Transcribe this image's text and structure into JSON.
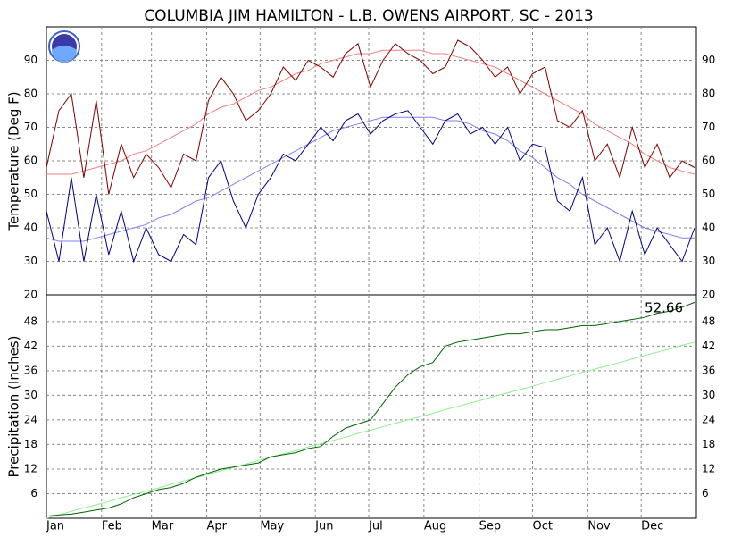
{
  "chart_data": [
    {
      "type": "line",
      "title": "COLUMBIA JIM HAMILTON - L.B. OWENS AIRPORT, SC - 2013",
      "y_label": "Temperature (Deg F)",
      "x": [
        1,
        8,
        15,
        22,
        29,
        36,
        43,
        50,
        57,
        64,
        71,
        78,
        85,
        92,
        99,
        106,
        113,
        120,
        127,
        134,
        141,
        148,
        155,
        162,
        169,
        176,
        183,
        190,
        197,
        204,
        211,
        218,
        225,
        232,
        239,
        246,
        253,
        260,
        267,
        274,
        281,
        288,
        295,
        302,
        309,
        316,
        323,
        330,
        337,
        344,
        351,
        358,
        365
      ],
      "xlim": [
        1,
        366
      ],
      "ylim": [
        20,
        100
      ],
      "yticks": [
        20,
        30,
        40,
        50,
        60,
        70,
        80,
        90
      ],
      "grid": true,
      "series": [
        {
          "color": "#f08080",
          "values": [
            56,
            56,
            56,
            57,
            58,
            59,
            60,
            62,
            63,
            65,
            67,
            69,
            71,
            74,
            76,
            77,
            79,
            81,
            82,
            84,
            86,
            87,
            89,
            90,
            91,
            92,
            92,
            93,
            93,
            93,
            93,
            92,
            92,
            91,
            90,
            89,
            88,
            86,
            84,
            82,
            80,
            78,
            76,
            74,
            71,
            69,
            67,
            65,
            62,
            60,
            58,
            57,
            56
          ]
        },
        {
          "color": "#8080f0",
          "values": [
            37,
            36,
            36,
            36,
            37,
            38,
            39,
            40,
            41,
            43,
            44,
            46,
            48,
            49,
            51,
            53,
            55,
            57,
            59,
            61,
            63,
            65,
            67,
            69,
            70,
            71,
            72,
            73,
            73,
            73,
            73,
            73,
            72,
            72,
            71,
            69,
            68,
            66,
            63,
            61,
            58,
            55,
            53,
            50,
            48,
            46,
            44,
            42,
            40,
            39,
            38,
            37,
            37
          ]
        },
        {
          "color": "#800000",
          "values": [
            58,
            75,
            80,
            55,
            78,
            50,
            65,
            55,
            62,
            58,
            52,
            62,
            60,
            78,
            85,
            80,
            72,
            75,
            80,
            88,
            84,
            90,
            88,
            85,
            92,
            95,
            82,
            90,
            95,
            92,
            90,
            86,
            88,
            96,
            94,
            90,
            85,
            88,
            80,
            86,
            88,
            72,
            70,
            75,
            60,
            65,
            55,
            70,
            58,
            65,
            55,
            60,
            58
          ]
        },
        {
          "color": "#000080",
          "values": [
            45,
            30,
            55,
            30,
            50,
            32,
            45,
            30,
            40,
            32,
            30,
            38,
            35,
            55,
            60,
            48,
            40,
            50,
            55,
            62,
            60,
            65,
            70,
            66,
            72,
            74,
            68,
            72,
            74,
            75,
            70,
            65,
            72,
            74,
            68,
            70,
            65,
            70,
            60,
            65,
            64,
            48,
            45,
            55,
            35,
            40,
            30,
            45,
            32,
            40,
            35,
            30,
            40
          ]
        }
      ]
    },
    {
      "type": "line",
      "y_label": "Precipitation (Inches)",
      "annotation": "52.66",
      "x": [
        1,
        8,
        15,
        22,
        29,
        36,
        43,
        50,
        57,
        64,
        71,
        78,
        85,
        92,
        99,
        106,
        113,
        120,
        127,
        134,
        141,
        148,
        155,
        162,
        169,
        176,
        183,
        190,
        197,
        204,
        211,
        218,
        225,
        232,
        239,
        246,
        253,
        260,
        267,
        274,
        281,
        288,
        295,
        302,
        309,
        316,
        323,
        330,
        337,
        344,
        351,
        358,
        365
      ],
      "xlim": [
        1,
        366
      ],
      "ylim": [
        0,
        54.5
      ],
      "yticks": [
        6,
        12,
        18,
        24,
        30,
        36,
        42,
        48
      ],
      "grid": true,
      "xticks": [
        {
          "value": 1,
          "label": "Jan"
        },
        {
          "value": 32,
          "label": "Feb"
        },
        {
          "value": 60,
          "label": "Mar"
        },
        {
          "value": 91,
          "label": "Apr"
        },
        {
          "value": 121,
          "label": "May"
        },
        {
          "value": 152,
          "label": "Jun"
        },
        {
          "value": 182,
          "label": "Jul"
        },
        {
          "value": 213,
          "label": "Aug"
        },
        {
          "value": 244,
          "label": "Sep"
        },
        {
          "value": 274,
          "label": "Oct"
        },
        {
          "value": 305,
          "label": "Nov"
        },
        {
          "value": 335,
          "label": "Dec"
        }
      ],
      "series": [
        {
          "color": "#90ee90",
          "values": [
            0,
            0.8,
            1.7,
            2.5,
            3.3,
            4.1,
            5.0,
            5.8,
            6.6,
            7.4,
            8.3,
            9.1,
            9.9,
            10.7,
            11.6,
            12.4,
            13.2,
            14.1,
            14.9,
            15.7,
            16.5,
            17.4,
            18.2,
            19.0,
            19.8,
            20.7,
            21.5,
            22.3,
            23.2,
            24.0,
            24.8,
            25.6,
            26.5,
            27.3,
            28.1,
            28.9,
            29.8,
            30.6,
            31.4,
            32.2,
            33.1,
            33.9,
            34.7,
            35.6,
            36.4,
            37.2,
            38.0,
            38.9,
            39.7,
            40.5,
            41.3,
            42.2,
            43.0
          ]
        },
        {
          "color": "#006400",
          "values": [
            0.5,
            0.8,
            1,
            1.5,
            2,
            2.5,
            3.5,
            5,
            6,
            7,
            7.5,
            8.5,
            10,
            11,
            12,
            12.5,
            13,
            13.5,
            15,
            15.5,
            16,
            17,
            17.5,
            20,
            22,
            23,
            24,
            28,
            32,
            35,
            37,
            38,
            42,
            43,
            43.5,
            44,
            44.5,
            45,
            45,
            45.5,
            46,
            46,
            46.5,
            47,
            47,
            47.5,
            48,
            48.5,
            49,
            50,
            50.5,
            51.5,
            52.66
          ]
        }
      ]
    }
  ]
}
